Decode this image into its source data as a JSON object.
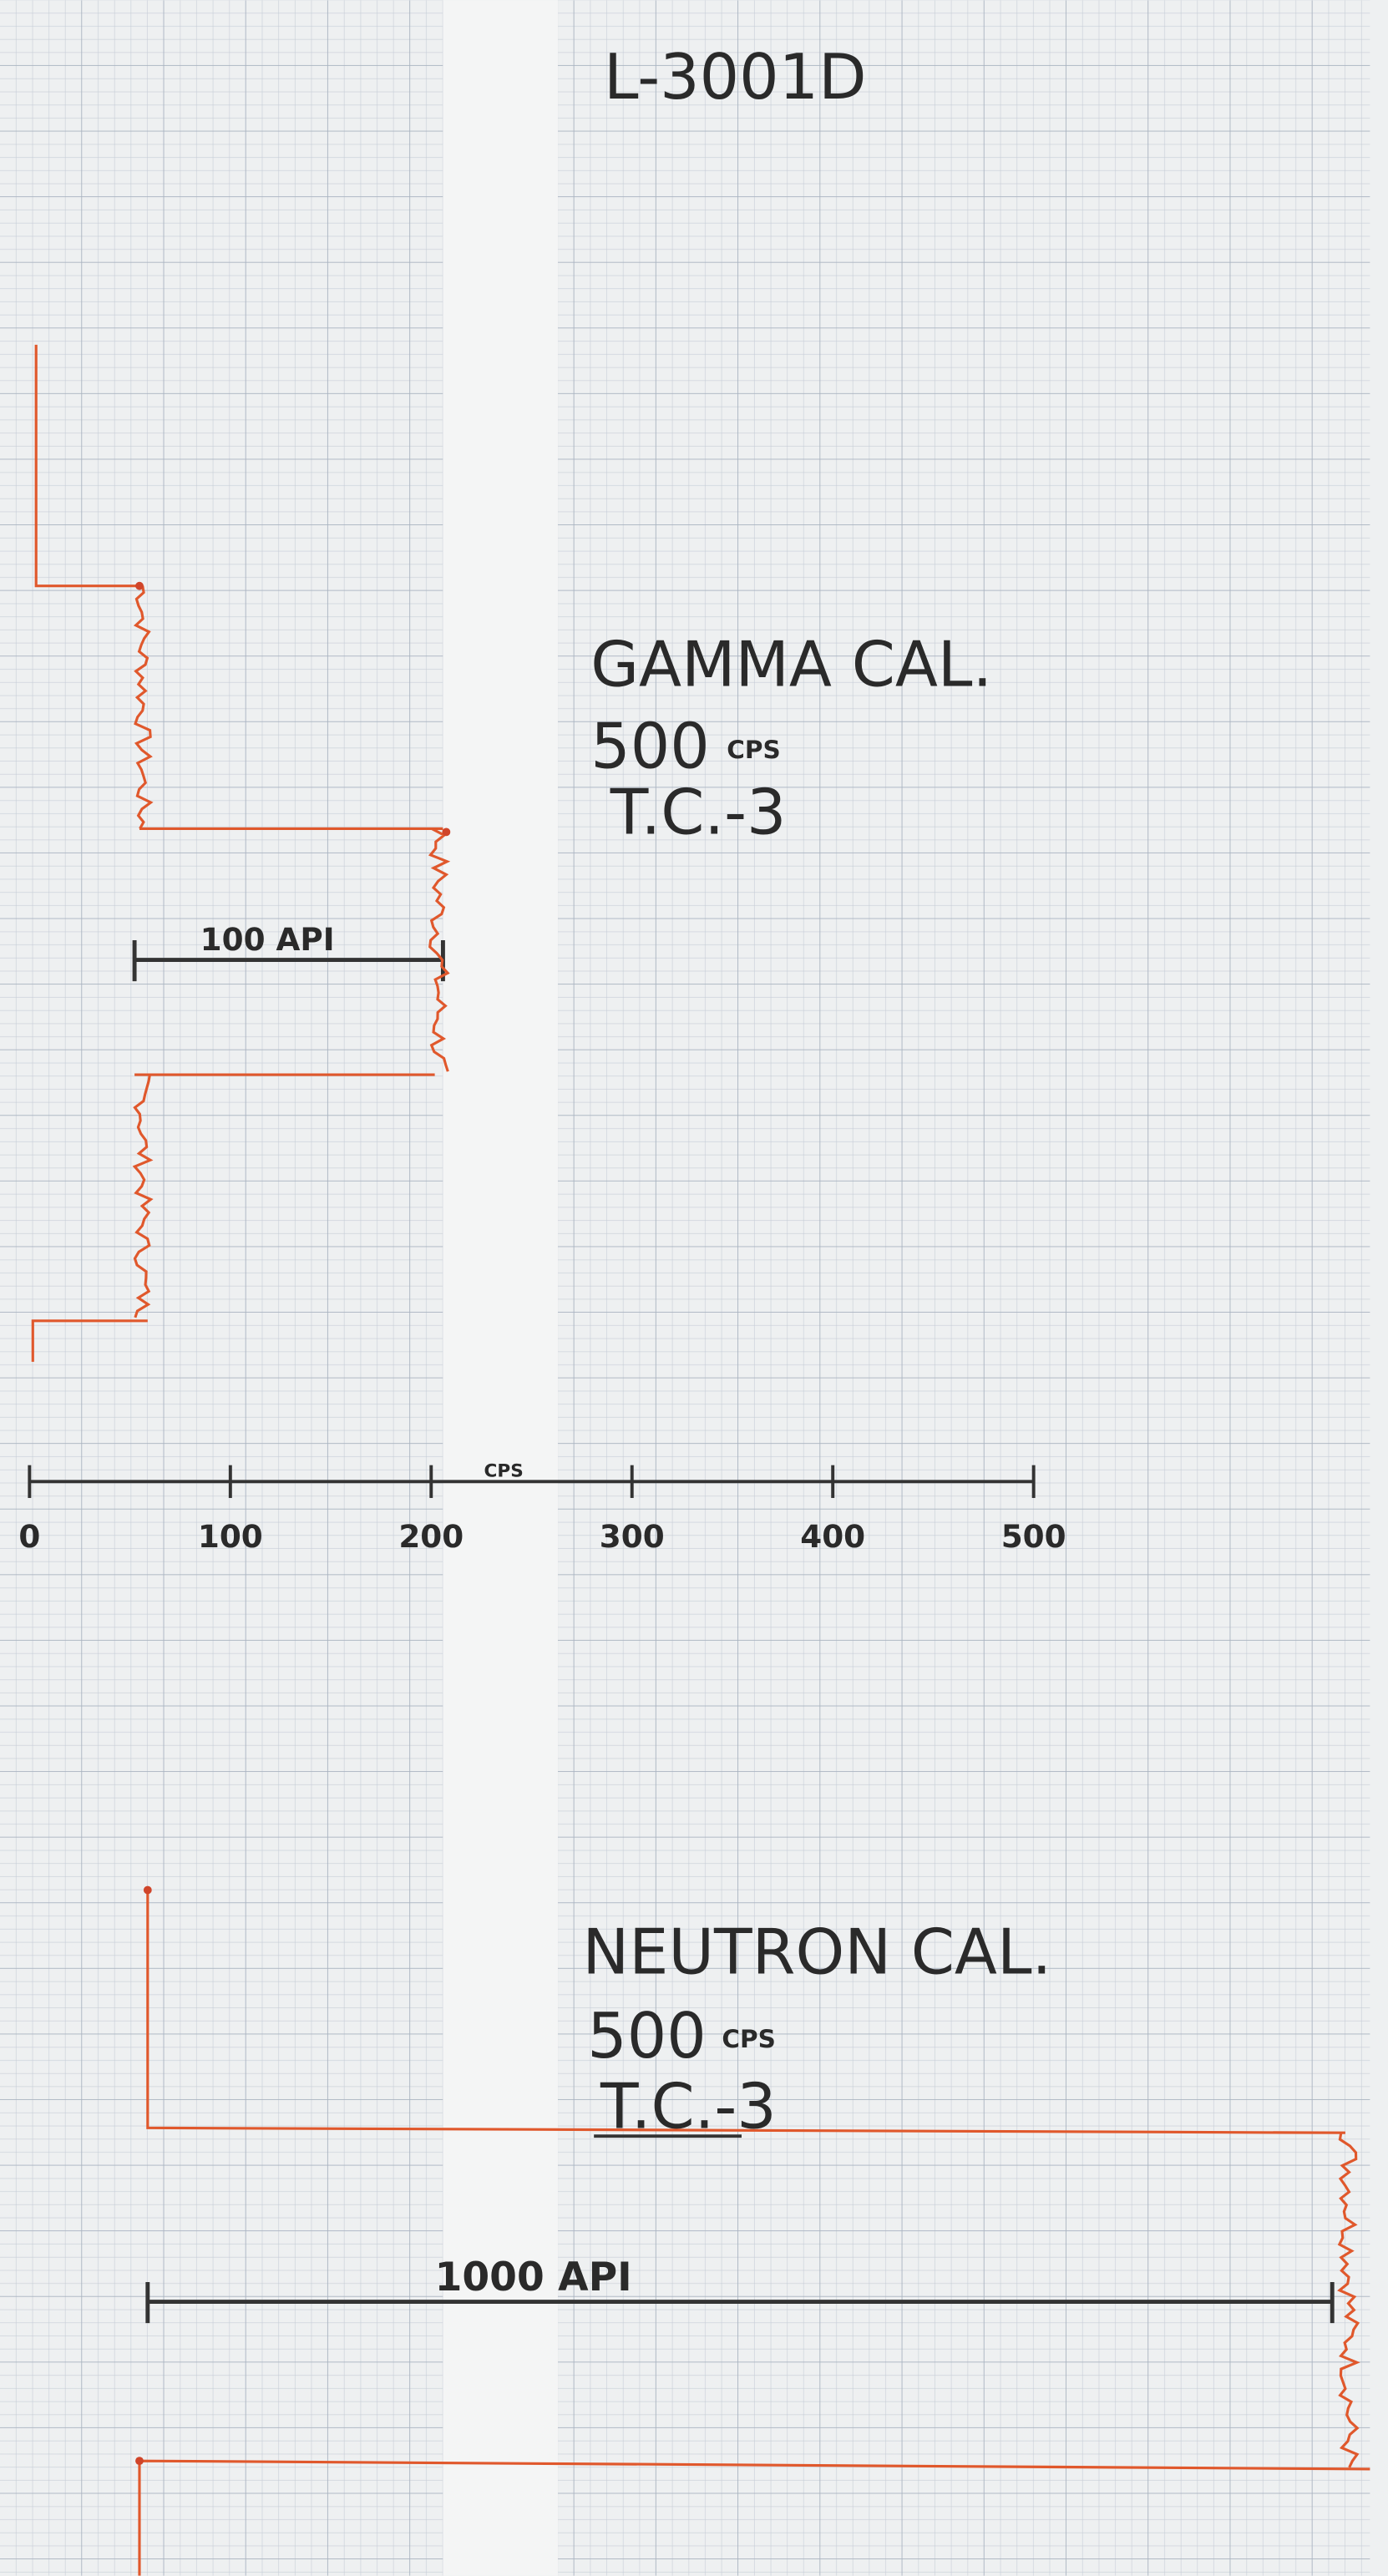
{
  "header": {
    "title": "L-3001D"
  },
  "gamma": {
    "title": "GAMMA CAL.",
    "rate": "500",
    "rate_unit": "CPS",
    "time_constant": "T.C.-3",
    "bar_label": "100 API"
  },
  "scale": {
    "unit": "CPS",
    "ticks": [
      0,
      100,
      200,
      300,
      400,
      500
    ]
  },
  "neutron": {
    "title": "NEUTRON CAL.",
    "rate": "500",
    "rate_unit": "CPS",
    "time_constant": "T.C.-3",
    "bar_label": "1000 API"
  }
}
